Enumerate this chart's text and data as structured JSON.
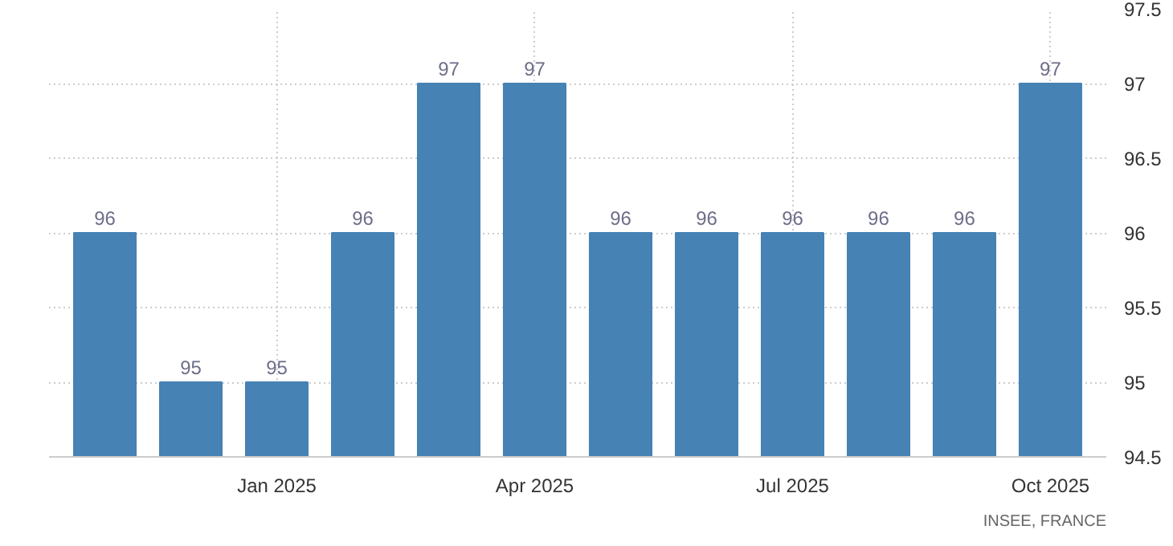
{
  "chart_data": {
    "type": "bar",
    "categories": [
      null,
      null,
      "Jan 2025",
      null,
      null,
      "Apr 2025",
      null,
      null,
      "Jul 2025",
      null,
      null,
      "Oct 2025"
    ],
    "values": [
      96,
      95,
      95,
      96,
      97,
      97,
      96,
      96,
      96,
      96,
      96,
      97
    ],
    "color": "#4682b4",
    "ylim": [
      94.5,
      97.5
    ],
    "yticks": [
      94.5,
      95,
      95.5,
      96,
      96.5,
      97,
      97.5
    ],
    "grid": true,
    "data_labels": true,
    "annotations": [
      "INSEE, FRANCE"
    ]
  }
}
